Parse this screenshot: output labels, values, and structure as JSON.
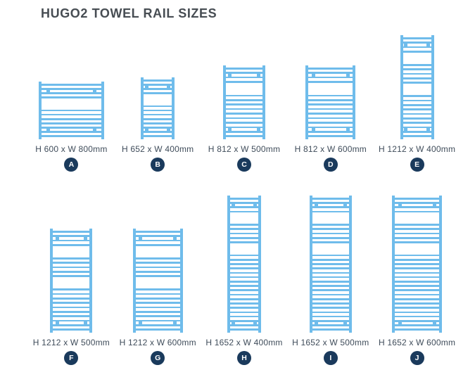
{
  "page": {
    "title": "HUGO2 TOWEL RAIL SIZES"
  },
  "colors": {
    "rail_blue": "#6FBCEB",
    "badge_navy": "#1A3A5C",
    "title_color": "#474D53",
    "label_color": "#3F4C5A"
  },
  "rows": [
    {
      "items": [
        {
          "letter": "A",
          "label": "H 600 x W 800mm",
          "h_mm": 600,
          "w_mm": 800
        },
        {
          "letter": "B",
          "label": "H 652 x W 400mm",
          "h_mm": 652,
          "w_mm": 400
        },
        {
          "letter": "C",
          "label": "H 812 x W 500mm",
          "h_mm": 812,
          "w_mm": 500
        },
        {
          "letter": "D",
          "label": "H 812 x W 600mm",
          "h_mm": 812,
          "w_mm": 600
        },
        {
          "letter": "E",
          "label": "H 1212 x W 400mm",
          "h_mm": 1212,
          "w_mm": 400
        }
      ]
    },
    {
      "items": [
        {
          "letter": "F",
          "label": "H 1212 x W 500mm",
          "h_mm": 1212,
          "w_mm": 500
        },
        {
          "letter": "G",
          "label": "H 1212 x W 600mm",
          "h_mm": 1212,
          "w_mm": 600
        },
        {
          "letter": "H",
          "label": "H 1652 x W 400mm",
          "h_mm": 1652,
          "w_mm": 400
        },
        {
          "letter": "I",
          "label": "H 1652 x W 500mm",
          "h_mm": 1652,
          "w_mm": 500
        },
        {
          "letter": "J",
          "label": "H 1652 x W 600mm",
          "h_mm": 1652,
          "w_mm": 600
        }
      ]
    }
  ]
}
